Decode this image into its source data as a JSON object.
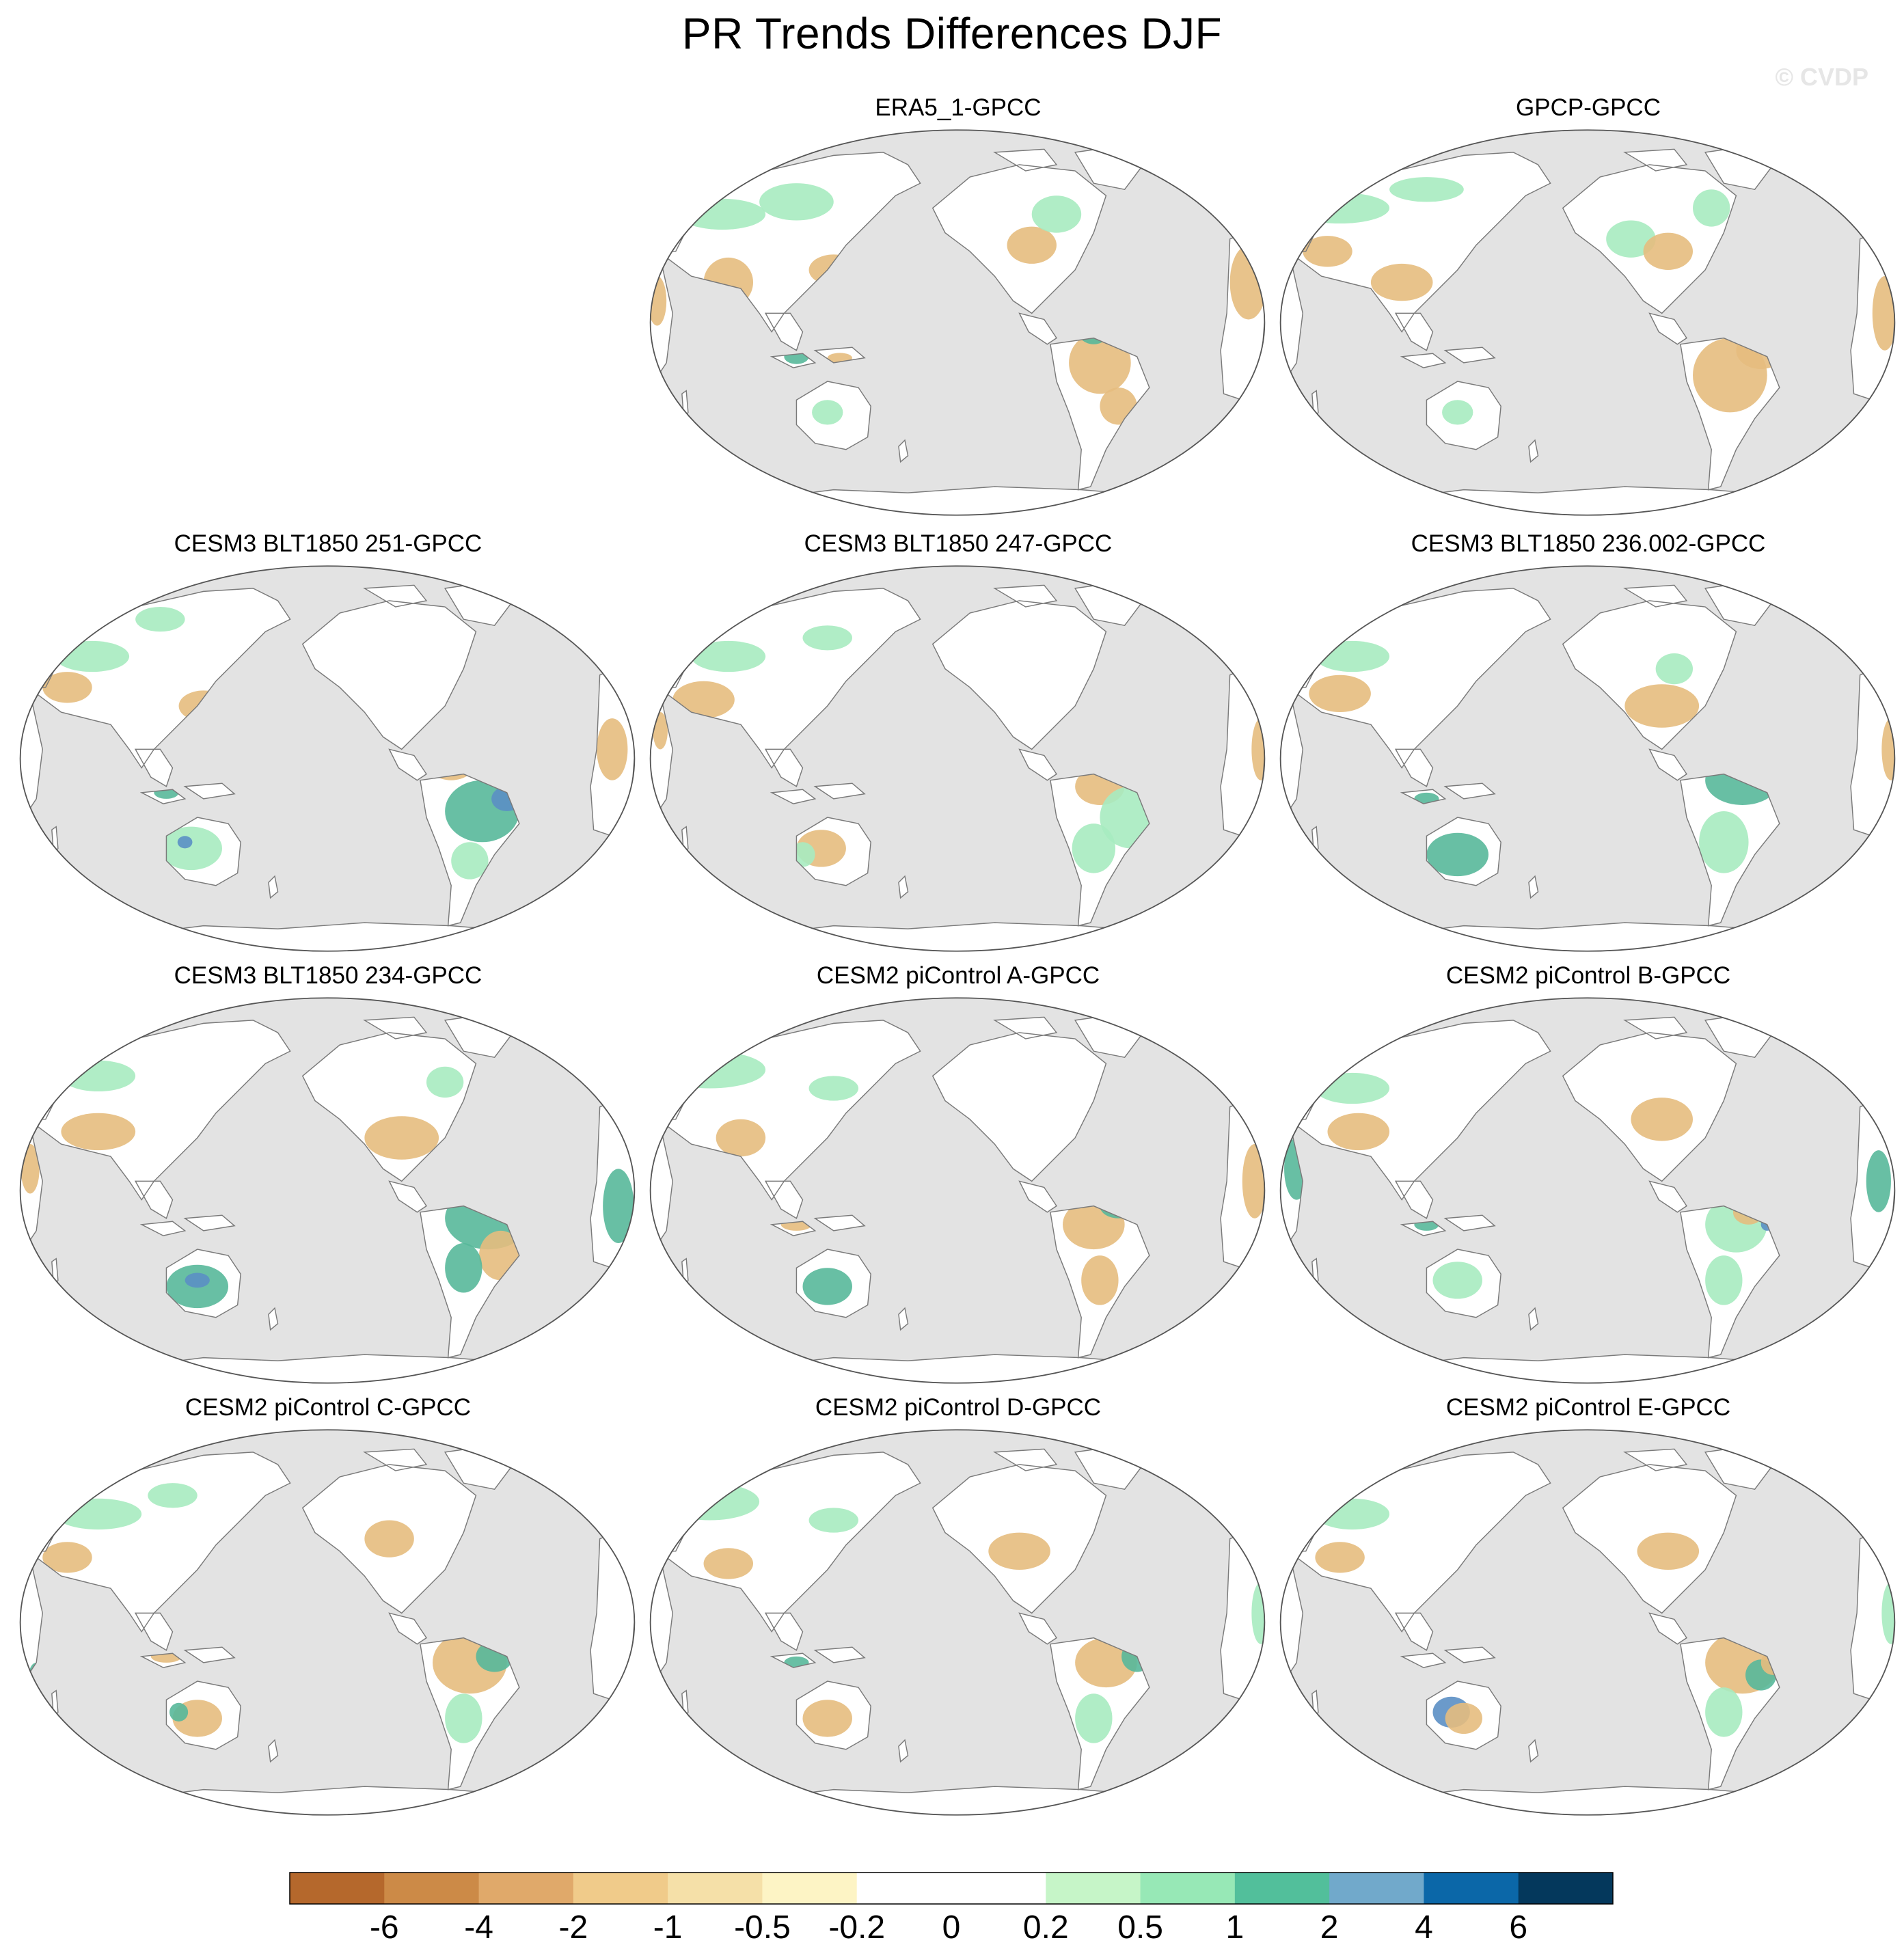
{
  "title": "PR Trends Differences DJF",
  "watermark": "© CVDP",
  "panels": [
    {
      "title": "ERA5_1-GPCC",
      "pattern": "era5"
    },
    {
      "title": "GPCP-GPCC",
      "pattern": "gpcp"
    },
    {
      "title": "CESM3 BLT1850 251-GPCC",
      "pattern": "m251"
    },
    {
      "title": "CESM3 BLT1850 247-GPCC",
      "pattern": "m247"
    },
    {
      "title": "CESM3 BLT1850 236.002-GPCC",
      "pattern": "m236"
    },
    {
      "title": "CESM3 BLT1850 234-GPCC",
      "pattern": "m234"
    },
    {
      "title": "CESM2 piControl A-GPCC",
      "pattern": "pA"
    },
    {
      "title": "CESM2 piControl B-GPCC",
      "pattern": "pB"
    },
    {
      "title": "CESM2 piControl C-GPCC",
      "pattern": "pC"
    },
    {
      "title": "CESM2 piControl D-GPCC",
      "pattern": "pD"
    },
    {
      "title": "CESM2 piControl E-GPCC",
      "pattern": "pE"
    }
  ],
  "colorbar": {
    "colors": [
      "#b5682c",
      "#cc8a47",
      "#e0a96a",
      "#f0cb8a",
      "#f5e0a8",
      "#fdf4c5",
      "#ffffff",
      "#ffffff",
      "#c6f5c8",
      "#97e8b6",
      "#52bf9b",
      "#71a9cb",
      "#0b67a8",
      "#04385c"
    ],
    "labels": [
      "-6",
      "-4",
      "-2",
      "-1",
      "-0.5",
      "-0.2",
      "0",
      "0.2",
      "0.5",
      "1",
      "2",
      "4",
      "6"
    ]
  },
  "colors": {
    "ocean": "#e3e3e3",
    "land": "#ffffff",
    "coast": "#7a7a7a",
    "dry": "#e6bd7e",
    "wet": "#a7ebc0",
    "strong_wet": "#58b89a",
    "very_wet": "#5b8fc4"
  }
}
